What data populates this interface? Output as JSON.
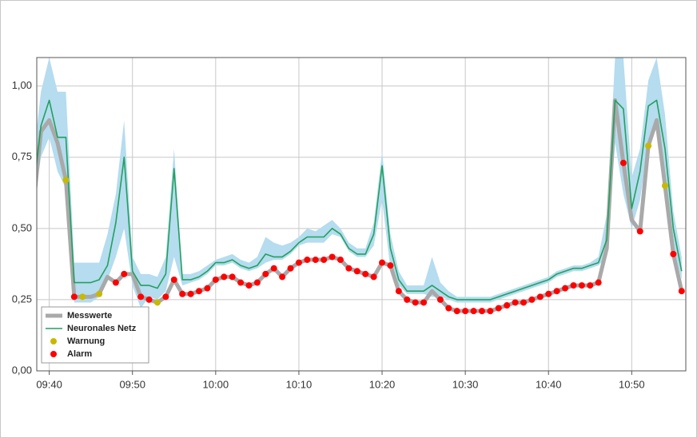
{
  "chart_data": {
    "type": "line",
    "x": [
      578,
      579,
      580,
      581,
      582,
      583,
      584,
      585,
      586,
      587,
      588,
      589,
      590,
      591,
      592,
      593,
      594,
      595,
      596,
      597,
      598,
      599,
      600,
      601,
      602,
      603,
      604,
      605,
      606,
      607,
      608,
      609,
      610,
      611,
      612,
      613,
      614,
      615,
      616,
      617,
      618,
      619,
      620,
      621,
      622,
      623,
      624,
      625,
      626,
      627,
      628,
      629,
      630,
      631,
      632,
      633,
      634,
      635,
      636,
      637,
      638,
      639,
      640,
      641,
      642,
      643,
      644,
      645,
      646,
      647,
      648,
      649,
      650,
      651,
      652,
      653,
      654,
      655,
      656
    ],
    "xlim": [
      578.5,
      656.5
    ],
    "xticks": [
      {
        "value": 580,
        "label": "09:40"
      },
      {
        "value": 590,
        "label": "09:50"
      },
      {
        "value": 600,
        "label": "10:00"
      },
      {
        "value": 610,
        "label": "10:10"
      },
      {
        "value": 620,
        "label": "10:20"
      },
      {
        "value": 630,
        "label": "10:30"
      },
      {
        "value": 640,
        "label": "10:40"
      },
      {
        "value": 650,
        "label": "10:50"
      }
    ],
    "ylim": [
      0,
      1.1
    ],
    "yticks": [
      {
        "value": 0,
        "label": "0,00"
      },
      {
        "value": 0.25,
        "label": "0,25"
      },
      {
        "value": 0.5,
        "label": "0,50"
      },
      {
        "value": 0.75,
        "label": "0,75"
      },
      {
        "value": 1,
        "label": "1,00"
      }
    ],
    "grid": true,
    "legend": "lower left",
    "band": {
      "color": "#b5dcef",
      "lower": [
        0.55,
        0.75,
        0.82,
        0.7,
        0.64,
        0.24,
        0.24,
        0.24,
        0.26,
        0.32,
        0.4,
        0.5,
        0.3,
        0.22,
        0.26,
        0.25,
        0.28,
        0.4,
        0.3,
        0.31,
        0.32,
        0.34,
        0.37,
        0.37,
        0.38,
        0.36,
        0.35,
        0.36,
        0.38,
        0.39,
        0.39,
        0.41,
        0.44,
        0.45,
        0.45,
        0.45,
        0.48,
        0.47,
        0.42,
        0.4,
        0.4,
        0.44,
        0.6,
        0.36,
        0.3,
        0.27,
        0.27,
        0.27,
        0.26,
        0.26,
        0.25,
        0.24,
        0.24,
        0.24,
        0.24,
        0.24,
        0.25,
        0.26,
        0.27,
        0.28,
        0.29,
        0.3,
        0.31,
        0.33,
        0.34,
        0.35,
        0.35,
        0.36,
        0.37,
        0.4,
        0.8,
        0.62,
        0.5,
        0.6,
        0.8,
        0.85,
        0.7,
        0.43,
        0.32
      ],
      "upper": [
        0.72,
        0.98,
        1.1,
        0.98,
        0.98,
        0.38,
        0.38,
        0.38,
        0.38,
        0.48,
        0.62,
        0.88,
        0.4,
        0.34,
        0.34,
        0.33,
        0.4,
        0.78,
        0.34,
        0.34,
        0.35,
        0.37,
        0.39,
        0.4,
        0.41,
        0.39,
        0.38,
        0.4,
        0.47,
        0.45,
        0.44,
        0.45,
        0.47,
        0.5,
        0.49,
        0.51,
        0.53,
        0.5,
        0.45,
        0.43,
        0.43,
        0.52,
        0.77,
        0.48,
        0.35,
        0.3,
        0.3,
        0.3,
        0.4,
        0.31,
        0.28,
        0.26,
        0.26,
        0.26,
        0.26,
        0.26,
        0.27,
        0.28,
        0.29,
        0.3,
        0.31,
        0.32,
        0.33,
        0.35,
        0.36,
        0.37,
        0.37,
        0.38,
        0.4,
        0.55,
        1.1,
        1.1,
        0.68,
        0.78,
        1.02,
        1.1,
        0.9,
        0.56,
        0.4
      ]
    },
    "series": [
      {
        "name": "Messwerte",
        "color": "#a9a9a9",
        "style": "thick-line",
        "values": [
          0.55,
          0.84,
          0.88,
          0.8,
          0.67,
          0.26,
          0.26,
          0.26,
          0.27,
          0.33,
          0.31,
          0.34,
          0.34,
          0.26,
          0.25,
          0.24,
          0.26,
          0.32,
          0.27,
          0.27,
          0.28,
          0.29,
          0.32,
          0.33,
          0.33,
          0.31,
          0.3,
          0.31,
          0.34,
          0.36,
          0.33,
          0.36,
          0.38,
          0.39,
          0.39,
          0.39,
          0.4,
          0.39,
          0.36,
          0.35,
          0.34,
          0.33,
          0.38,
          0.37,
          0.28,
          0.25,
          0.24,
          0.24,
          0.28,
          0.25,
          0.22,
          0.21,
          0.21,
          0.21,
          0.21,
          0.21,
          0.22,
          0.23,
          0.24,
          0.24,
          0.25,
          0.26,
          0.27,
          0.28,
          0.29,
          0.3,
          0.3,
          0.3,
          0.31,
          0.43,
          0.95,
          0.73,
          0.53,
          0.49,
          0.79,
          0.88,
          0.65,
          0.41,
          0.28
        ]
      },
      {
        "name": "Neuronales Netz",
        "color": "#22a05e",
        "style": "line",
        "values": [
          0.6,
          0.86,
          0.95,
          0.82,
          0.82,
          0.31,
          0.31,
          0.31,
          0.32,
          0.37,
          0.52,
          0.75,
          0.35,
          0.3,
          0.3,
          0.29,
          0.34,
          0.71,
          0.32,
          0.32,
          0.33,
          0.35,
          0.38,
          0.38,
          0.39,
          0.37,
          0.36,
          0.37,
          0.41,
          0.4,
          0.4,
          0.42,
          0.45,
          0.47,
          0.47,
          0.47,
          0.5,
          0.48,
          0.43,
          0.41,
          0.41,
          0.48,
          0.72,
          0.43,
          0.32,
          0.28,
          0.28,
          0.28,
          0.3,
          0.28,
          0.26,
          0.25,
          0.25,
          0.25,
          0.25,
          0.25,
          0.26,
          0.27,
          0.28,
          0.29,
          0.3,
          0.31,
          0.32,
          0.34,
          0.35,
          0.36,
          0.36,
          0.37,
          0.38,
          0.46,
          0.95,
          0.92,
          0.57,
          0.7,
          0.93,
          0.95,
          0.78,
          0.5,
          0.35
        ]
      },
      {
        "name": "Warnung",
        "color": "#c9b800",
        "style": "points",
        "x": [
          582,
          584,
          586,
          593,
          652,
          654
        ],
        "values": [
          0.67,
          0.26,
          0.27,
          0.24,
          0.79,
          0.65
        ]
      },
      {
        "name": "Alarm",
        "color": "#ff0000",
        "style": "points",
        "x": [
          583,
          588,
          589,
          591,
          592,
          594,
          595,
          596,
          597,
          598,
          599,
          600,
          601,
          602,
          603,
          604,
          605,
          606,
          607,
          608,
          609,
          610,
          611,
          612,
          613,
          614,
          615,
          616,
          617,
          618,
          619,
          620,
          621,
          622,
          623,
          624,
          625,
          627,
          628,
          629,
          630,
          631,
          632,
          633,
          634,
          635,
          636,
          637,
          638,
          639,
          640,
          641,
          642,
          643,
          644,
          645,
          646,
          649,
          651,
          655,
          656
        ],
        "values": [
          0.26,
          0.31,
          0.34,
          0.26,
          0.25,
          0.26,
          0.32,
          0.27,
          0.27,
          0.28,
          0.29,
          0.32,
          0.33,
          0.33,
          0.31,
          0.3,
          0.31,
          0.34,
          0.36,
          0.33,
          0.36,
          0.38,
          0.39,
          0.39,
          0.39,
          0.4,
          0.39,
          0.36,
          0.35,
          0.34,
          0.33,
          0.38,
          0.37,
          0.28,
          0.25,
          0.24,
          0.24,
          0.25,
          0.22,
          0.21,
          0.21,
          0.21,
          0.21,
          0.21,
          0.22,
          0.23,
          0.24,
          0.24,
          0.25,
          0.26,
          0.27,
          0.28,
          0.29,
          0.3,
          0.3,
          0.3,
          0.31,
          0.73,
          0.49,
          0.41,
          0.28
        ]
      }
    ]
  }
}
